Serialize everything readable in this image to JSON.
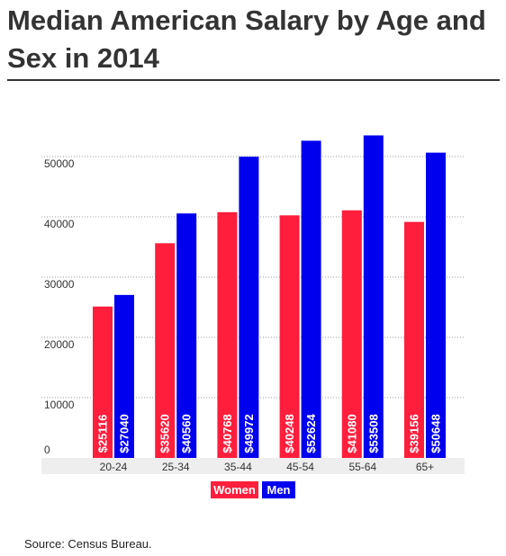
{
  "title": "Median American Salary by Age and Sex in 2014",
  "source": "Source: Census Bureau.",
  "colors": {
    "women": "#ff1e3c",
    "men": "#0000ee",
    "axis_band": "#eeeeee",
    "grid": "#9a9a9a",
    "title_text": "#333333"
  },
  "chart_data": {
    "type": "bar",
    "title": "Median American Salary by Age and Sex in 2014",
    "categories": [
      "20-24",
      "25-34",
      "35-44",
      "45-54",
      "55-64",
      "65+"
    ],
    "series": [
      {
        "name": "Women",
        "color": "#ff1e3c",
        "values": [
          25116,
          35620,
          40768,
          40248,
          41080,
          39156
        ],
        "labels": [
          "$25116",
          "$35620",
          "$40768",
          "$40248",
          "$41080",
          "$39156"
        ]
      },
      {
        "name": "Men",
        "color": "#0000ee",
        "values": [
          27040,
          40560,
          49972,
          52624,
          53508,
          50648
        ],
        "labels": [
          "$27040",
          "$40560",
          "$49972",
          "$52624",
          "$53508",
          "$50648"
        ]
      }
    ],
    "y_ticks": [
      0,
      10000,
      20000,
      30000,
      40000,
      50000
    ],
    "y_tick_labels": [
      "0",
      "10000",
      "20000",
      "30000",
      "40000",
      "50000"
    ],
    "ylim": [
      0,
      60000
    ],
    "grid": true,
    "legend": {
      "position": "bottom-center",
      "entries": [
        "Women",
        "Men"
      ]
    }
  }
}
